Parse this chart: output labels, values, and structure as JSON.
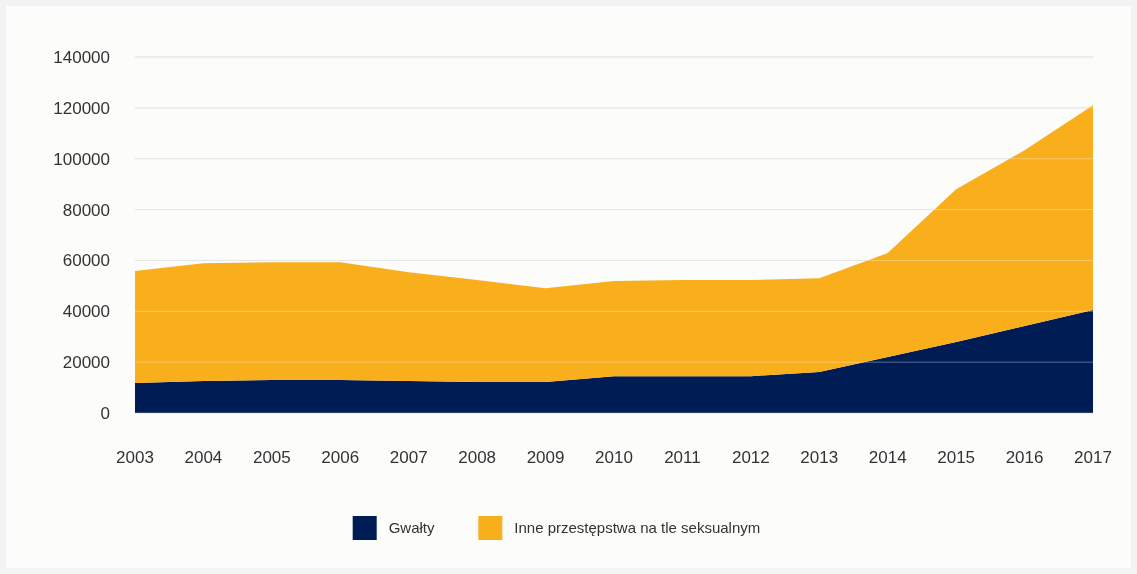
{
  "chart_data": {
    "type": "area",
    "stacked": true,
    "categories": [
      "2003",
      "2004",
      "2005",
      "2006",
      "2007",
      "2008",
      "2009",
      "2010",
      "2011",
      "2012",
      "2013",
      "2014",
      "2015",
      "2016",
      "2017"
    ],
    "series": [
      {
        "name": "Gwałty",
        "color": "#001c54",
        "values": [
          11800,
          12600,
          13000,
          13000,
          12600,
          12200,
          12200,
          14500,
          14500,
          14500,
          16100,
          22000,
          27900,
          34200,
          40500
        ]
      },
      {
        "name": "Inne przestępstwa na tle seksualnym",
        "color": "#f9ae1b",
        "values": [
          44000,
          46300,
          46300,
          46300,
          42800,
          40100,
          36900,
          37400,
          37800,
          37800,
          36900,
          40900,
          60100,
          69100,
          80500
        ]
      }
    ],
    "ylim": [
      0,
      140000
    ],
    "yticks": [
      0,
      20000,
      40000,
      60000,
      80000,
      100000,
      120000,
      140000
    ],
    "grid": "y",
    "legend": "bottom"
  }
}
